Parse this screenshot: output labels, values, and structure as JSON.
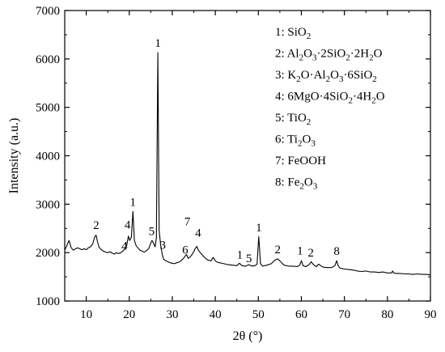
{
  "chart_data": {
    "type": "line",
    "title": "",
    "xlabel": "2θ (°)",
    "ylabel": "Intensity (a.u.)",
    "xlim": [
      5,
      90
    ],
    "ylim": [
      1000,
      7000
    ],
    "x_ticks": [
      10,
      20,
      30,
      40,
      50,
      60,
      70,
      80,
      90
    ],
    "y_ticks": [
      1000,
      2000,
      3000,
      4000,
      5000,
      6000,
      7000
    ],
    "grid": false,
    "legend_placement": "top-right",
    "series": [
      {
        "color": "#000000",
        "points": [
          [
            5.0,
            2050
          ],
          [
            5.5,
            2150
          ],
          [
            6.0,
            2250
          ],
          [
            6.5,
            2100
          ],
          [
            7.0,
            2050
          ],
          [
            7.5,
            2080
          ],
          [
            8.0,
            2100
          ],
          [
            8.5,
            2080
          ],
          [
            9.0,
            2060
          ],
          [
            9.5,
            2080
          ],
          [
            10.0,
            2060
          ],
          [
            10.5,
            2100
          ],
          [
            11.0,
            2120
          ],
          [
            11.5,
            2180
          ],
          [
            12.0,
            2330
          ],
          [
            12.3,
            2360
          ],
          [
            12.6,
            2230
          ],
          [
            13.0,
            2110
          ],
          [
            13.5,
            2060
          ],
          [
            14.0,
            2030
          ],
          [
            14.5,
            2010
          ],
          [
            15.0,
            2000
          ],
          [
            15.5,
            2020
          ],
          [
            16.0,
            1990
          ],
          [
            16.5,
            1970
          ],
          [
            17.0,
            2000
          ],
          [
            17.5,
            1980
          ],
          [
            18.0,
            2000
          ],
          [
            18.5,
            2030
          ],
          [
            19.0,
            2080
          ],
          [
            19.4,
            2150
          ],
          [
            19.8,
            2340
          ],
          [
            20.1,
            2250
          ],
          [
            20.5,
            2320
          ],
          [
            20.85,
            2850
          ],
          [
            21.2,
            2250
          ],
          [
            21.6,
            2140
          ],
          [
            22.0,
            2100
          ],
          [
            22.5,
            2050
          ],
          [
            23.0,
            2030
          ],
          [
            23.5,
            2010
          ],
          [
            24.0,
            2040
          ],
          [
            24.5,
            2080
          ],
          [
            25.0,
            2200
          ],
          [
            25.3,
            2250
          ],
          [
            25.7,
            2180
          ],
          [
            26.0,
            2120
          ],
          [
            26.3,
            2300
          ],
          [
            26.65,
            6130
          ],
          [
            26.95,
            2450
          ],
          [
            27.3,
            2150
          ],
          [
            27.7,
            1950
          ],
          [
            28.0,
            1860
          ],
          [
            28.5,
            1830
          ],
          [
            29.0,
            1810
          ],
          [
            29.5,
            1790
          ],
          [
            30.0,
            1780
          ],
          [
            30.5,
            1770
          ],
          [
            31.0,
            1790
          ],
          [
            31.5,
            1800
          ],
          [
            32.0,
            1830
          ],
          [
            32.5,
            1870
          ],
          [
            33.0,
            1930
          ],
          [
            33.3,
            1960
          ],
          [
            33.7,
            1880
          ],
          [
            34.0,
            1900
          ],
          [
            34.5,
            1950
          ],
          [
            35.0,
            2020
          ],
          [
            35.3,
            2080
          ],
          [
            35.7,
            2130
          ],
          [
            36.0,
            2060
          ],
          [
            36.5,
            2000
          ],
          [
            37.0,
            1950
          ],
          [
            37.5,
            1900
          ],
          [
            38.0,
            1860
          ],
          [
            38.5,
            1840
          ],
          [
            39.0,
            1830
          ],
          [
            39.5,
            1900
          ],
          [
            40.0,
            1830
          ],
          [
            40.5,
            1800
          ],
          [
            41.0,
            1790
          ],
          [
            42.0,
            1770
          ],
          [
            43.0,
            1750
          ],
          [
            44.0,
            1740
          ],
          [
            45.0,
            1730
          ],
          [
            45.6,
            1780
          ],
          [
            46.2,
            1730
          ],
          [
            47.0,
            1720
          ],
          [
            47.8,
            1750
          ],
          [
            48.5,
            1720
          ],
          [
            49.2,
            1730
          ],
          [
            49.7,
            1760
          ],
          [
            50.1,
            2330
          ],
          [
            50.5,
            1770
          ],
          [
            51.0,
            1720
          ],
          [
            52.0,
            1740
          ],
          [
            53.0,
            1770
          ],
          [
            53.8,
            1840
          ],
          [
            54.5,
            1870
          ],
          [
            55.0,
            1830
          ],
          [
            55.5,
            1780
          ],
          [
            56.0,
            1740
          ],
          [
            57.0,
            1720
          ],
          [
            58.0,
            1720
          ],
          [
            59.0,
            1710
          ],
          [
            59.6,
            1740
          ],
          [
            60.0,
            1830
          ],
          [
            60.4,
            1730
          ],
          [
            61.0,
            1710
          ],
          [
            61.8,
            1750
          ],
          [
            62.3,
            1810
          ],
          [
            62.8,
            1750
          ],
          [
            63.5,
            1710
          ],
          [
            64.0,
            1760
          ],
          [
            65.0,
            1700
          ],
          [
            66.0,
            1690
          ],
          [
            67.0,
            1690
          ],
          [
            67.8,
            1730
          ],
          [
            68.2,
            1830
          ],
          [
            68.6,
            1720
          ],
          [
            69.0,
            1680
          ],
          [
            70.0,
            1660
          ],
          [
            71.0,
            1650
          ],
          [
            72.0,
            1640
          ],
          [
            73.0,
            1620
          ],
          [
            74.0,
            1610
          ],
          [
            75.0,
            1620
          ],
          [
            76.0,
            1600
          ],
          [
            77.0,
            1600
          ],
          [
            78.0,
            1590
          ],
          [
            79.0,
            1600
          ],
          [
            80.0,
            1580
          ],
          [
            81.0,
            1580
          ],
          [
            81.2,
            1620
          ],
          [
            81.5,
            1580
          ],
          [
            82.0,
            1570
          ],
          [
            83.0,
            1570
          ],
          [
            84.0,
            1560
          ],
          [
            85.0,
            1560
          ],
          [
            86.0,
            1550
          ],
          [
            87.0,
            1560
          ],
          [
            88.0,
            1550
          ],
          [
            89.0,
            1550
          ],
          [
            90.0,
            1540
          ]
        ]
      }
    ],
    "peak_labels": [
      {
        "text": "2",
        "x": 12.3,
        "y": 2490
      },
      {
        "text": "1",
        "x": 20.85,
        "y": 2960
      },
      {
        "text": "4",
        "x": 19.6,
        "y": 2500
      },
      {
        "text": "4",
        "x": 18.9,
        "y": 2060
      },
      {
        "text": "5",
        "x": 25.2,
        "y": 2360
      },
      {
        "text": "1",
        "x": 26.65,
        "y": 6250
      },
      {
        "text": "3",
        "x": 27.8,
        "y": 2080
      },
      {
        "text": "6",
        "x": 33.0,
        "y": 1980
      },
      {
        "text": "7",
        "x": 33.5,
        "y": 2560
      },
      {
        "text": "4",
        "x": 36.0,
        "y": 2330
      },
      {
        "text": "1",
        "x": 45.7,
        "y": 1880
      },
      {
        "text": "5",
        "x": 47.8,
        "y": 1800
      },
      {
        "text": "1",
        "x": 50.1,
        "y": 2440
      },
      {
        "text": "2",
        "x": 54.5,
        "y": 1990
      },
      {
        "text": "1",
        "x": 59.7,
        "y": 1960
      },
      {
        "text": "2",
        "x": 62.2,
        "y": 1920
      },
      {
        "text": "8",
        "x": 68.2,
        "y": 1950
      }
    ],
    "legend": [
      {
        "num": "1",
        "parts": [
          [
            "SiO",
            ""
          ],
          [
            "2",
            "sub"
          ]
        ]
      },
      {
        "num": "2",
        "parts": [
          [
            "Al",
            ""
          ],
          [
            "2",
            "sub"
          ],
          [
            "O",
            ""
          ],
          [
            "3",
            "sub"
          ],
          [
            "·2SiO",
            ""
          ],
          [
            "2",
            "sub"
          ],
          [
            "·2H",
            ""
          ],
          [
            "2",
            "sub"
          ],
          [
            "O",
            ""
          ]
        ]
      },
      {
        "num": "3",
        "parts": [
          [
            "K",
            ""
          ],
          [
            "2",
            "sub"
          ],
          [
            "O·Al",
            ""
          ],
          [
            "2",
            "sub"
          ],
          [
            "O",
            ""
          ],
          [
            "3",
            "sub"
          ],
          [
            "·6SiO",
            ""
          ],
          [
            "2",
            "sub"
          ]
        ]
      },
      {
        "num": "4",
        "parts": [
          [
            "6MgO·4SiO",
            ""
          ],
          [
            "2",
            "sub"
          ],
          [
            "·4H",
            ""
          ],
          [
            "2",
            "sub"
          ],
          [
            "O",
            ""
          ]
        ]
      },
      {
        "num": "5",
        "parts": [
          [
            "TiO",
            ""
          ],
          [
            "2",
            "sub"
          ]
        ]
      },
      {
        "num": "6",
        "parts": [
          [
            "Ti",
            ""
          ],
          [
            "2",
            "sub"
          ],
          [
            "O",
            ""
          ],
          [
            "3",
            "sub"
          ]
        ]
      },
      {
        "num": "7",
        "parts": [
          [
            "FeOOH",
            ""
          ]
        ]
      },
      {
        "num": "8",
        "parts": [
          [
            "Fe",
            ""
          ],
          [
            "2",
            "sub"
          ],
          [
            "O",
            ""
          ],
          [
            "3",
            "sub"
          ]
        ]
      }
    ]
  }
}
